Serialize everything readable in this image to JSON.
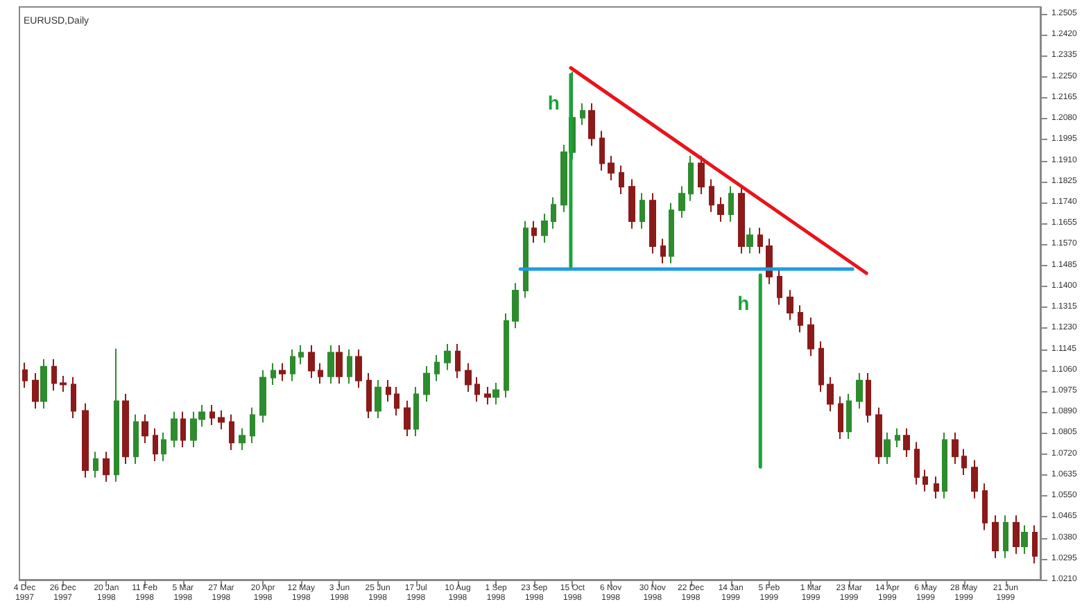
{
  "chart_data": {
    "type": "candlestick",
    "title": "EURUSD,Daily",
    "xlim": [
      "1997-12-01",
      "1999-07-11"
    ],
    "xticks": [
      {
        "value": "1997-12-04",
        "label": "4 Dec 1997"
      },
      {
        "value": "1997-12-26",
        "label": "26 Dec 1997"
      },
      {
        "value": "1998-01-20",
        "label": "20 Jan 1998"
      },
      {
        "value": "1998-02-11",
        "label": "11 Feb 1998"
      },
      {
        "value": "1998-03-05",
        "label": "5 Mar 1998"
      },
      {
        "value": "1998-03-27",
        "label": "27 Mar 1998"
      },
      {
        "value": "1998-04-20",
        "label": "20 Apr 1998"
      },
      {
        "value": "1998-05-12",
        "label": "12 May 1998"
      },
      {
        "value": "1998-06-03",
        "label": "3 Jun 1998"
      },
      {
        "value": "1998-06-25",
        "label": "25 Jun 1998"
      },
      {
        "value": "1998-07-17",
        "label": "17 Jul 1998"
      },
      {
        "value": "1998-08-10",
        "label": "10 Aug 1998"
      },
      {
        "value": "1998-09-01",
        "label": "1 Sep 1998"
      },
      {
        "value": "1998-09-23",
        "label": "23 Sep 1998"
      },
      {
        "value": "1998-10-15",
        "label": "15 Oct 1998"
      },
      {
        "value": "1998-11-06",
        "label": "6 Nov 1998"
      },
      {
        "value": "1998-11-30",
        "label": "30 Nov 1998"
      },
      {
        "value": "1998-12-22",
        "label": "22 Dec 1998"
      },
      {
        "value": "1999-01-14",
        "label": "14 Jan 1999"
      },
      {
        "value": "1999-02-05",
        "label": "5 Feb 1999"
      },
      {
        "value": "1999-03-01",
        "label": "1 Mar 1999"
      },
      {
        "value": "1999-03-23",
        "label": "23 Mar 1999"
      },
      {
        "value": "1999-04-14",
        "label": "14 Apr 1999"
      },
      {
        "value": "1999-05-06",
        "label": "6 May 1999"
      },
      {
        "value": "1999-05-28",
        "label": "28 May 1999"
      },
      {
        "value": "1999-06-21",
        "label": "21 Jun 1999"
      }
    ],
    "ylim": [
      1.021,
      1.2533
    ],
    "yticks": [
      {
        "value": 1.021,
        "label": "1.0210"
      },
      {
        "value": 1.0295,
        "label": "1.0295"
      },
      {
        "value": 1.038,
        "label": "1.0380"
      },
      {
        "value": 1.0465,
        "label": "1.0465"
      },
      {
        "value": 1.055,
        "label": "1.0550"
      },
      {
        "value": 1.0635,
        "label": "1.0635"
      },
      {
        "value": 1.072,
        "label": "1.0720"
      },
      {
        "value": 1.0805,
        "label": "1.0805"
      },
      {
        "value": 1.089,
        "label": "1.0890"
      },
      {
        "value": 1.0975,
        "label": "1.0975"
      },
      {
        "value": 1.106,
        "label": "1.1060"
      },
      {
        "value": 1.1145,
        "label": "1.1145"
      },
      {
        "value": 1.123,
        "label": "1.1230"
      },
      {
        "value": 1.1315,
        "label": "1.1315"
      },
      {
        "value": 1.14,
        "label": "1.1400"
      },
      {
        "value": 1.1485,
        "label": "1.1485"
      },
      {
        "value": 1.157,
        "label": "1.1570"
      },
      {
        "value": 1.1655,
        "label": "1.1655"
      },
      {
        "value": 1.174,
        "label": "1.1740"
      },
      {
        "value": 1.1825,
        "label": "1.1825"
      },
      {
        "value": 1.191,
        "label": "1.1910"
      },
      {
        "value": 1.1995,
        "label": "1.1995"
      },
      {
        "value": 1.208,
        "label": "1.2080"
      },
      {
        "value": 1.2165,
        "label": "1.2165"
      },
      {
        "value": 1.225,
        "label": "1.2250"
      },
      {
        "value": 1.2335,
        "label": "1.2335"
      },
      {
        "value": 1.242,
        "label": "1.2420"
      },
      {
        "value": 1.2505,
        "label": "1.2505"
      }
    ],
    "series": [
      {
        "x": [
          "1997-12-04",
          "1997-12-10",
          "1997-12-15",
          "1997-12-21",
          "1997-12-26",
          "1998-01-01",
          "1998-01-08",
          "1998-01-14",
          "1998-01-20",
          "1998-01-26",
          "1998-01-31",
          "1998-02-06",
          "1998-02-11",
          "1998-02-17",
          "1998-02-22",
          "1998-02-28",
          "1998-03-05",
          "1998-03-11",
          "1998-03-16",
          "1998-03-22",
          "1998-03-27",
          "1998-04-02",
          "1998-04-08",
          "1998-04-14",
          "1998-04-20",
          "1998-04-26",
          "1998-05-01",
          "1998-05-07",
          "1998-05-12",
          "1998-05-18",
          "1998-05-23",
          "1998-05-29",
          "1998-06-03",
          "1998-06-09",
          "1998-06-14",
          "1998-06-20",
          "1998-06-25",
          "1998-07-01",
          "1998-07-06",
          "1998-07-12",
          "1998-07-17",
          "1998-07-23",
          "1998-07-29",
          "1998-08-04",
          "1998-08-10",
          "1998-08-16",
          "1998-08-21",
          "1998-08-27",
          "1998-09-01",
          "1998-09-07",
          "1998-09-12",
          "1998-09-18",
          "1998-09-23",
          "1998-09-29",
          "1998-10-04",
          "1998-10-10",
          "1998-10-15",
          "1998-10-21",
          "1998-10-26",
          "1998-11-01",
          "1998-11-06",
          "1998-11-12",
          "1998-11-18",
          "1998-11-24",
          "1998-11-30",
          "1998-12-06",
          "1998-12-11",
          "1998-12-17",
          "1998-12-22",
          "1998-12-28",
          "1999-01-03",
          "1999-01-08",
          "1999-01-14",
          "1999-01-20",
          "1999-01-25",
          "1999-01-31",
          "1999-02-05",
          "1999-02-11",
          "1999-02-17",
          "1999-02-23",
          "1999-03-01",
          "1999-03-07",
          "1999-03-12",
          "1999-03-18",
          "1999-03-23",
          "1999-03-29",
          "1999-04-03",
          "1999-04-09",
          "1999-04-14",
          "1999-04-20",
          "1999-04-25",
          "1999-05-01",
          "1999-05-06",
          "1999-05-12",
          "1999-05-17",
          "1999-05-23",
          "1999-05-28",
          "1999-06-03",
          "1999-06-09",
          "1999-06-15",
          "1999-06-21",
          "1999-06-27",
          "1999-07-02",
          "1999-07-08"
        ],
        "colors": [
          "#8b1a1a",
          "#8b1a1a",
          "#2e8b2e",
          "#8b1a1a",
          "#8b1a1a",
          "#8b1a1a",
          "#8b1a1a",
          "#2e8b2e",
          "#8b1a1a",
          "#2e8b2e",
          "#8b1a1a",
          "#2e8b2e",
          "#8b1a1a",
          "#8b1a1a",
          "#2e8b2e",
          "#2e8b2e",
          "#8b1a1a",
          "#2e8b2e",
          "#2e8b2e",
          "#8b1a1a",
          "#8b1a1a",
          "#8b1a1a",
          "#2e8b2e",
          "#2e8b2e",
          "#2e8b2e",
          "#2e8b2e",
          "#8b1a1a",
          "#2e8b2e",
          "#2e8b2e",
          "#8b1a1a",
          "#8b1a1a",
          "#2e8b2e",
          "#8b1a1a",
          "#2e8b2e",
          "#8b1a1a",
          "#8b1a1a",
          "#2e8b2e",
          "#8b1a1a",
          "#8b1a1a",
          "#8b1a1a",
          "#2e8b2e",
          "#2e8b2e",
          "#2e8b2e",
          "#2e8b2e",
          "#8b1a1a",
          "#8b1a1a",
          "#8b1a1a",
          "#8b1a1a",
          "#2e8b2e",
          "#2e8b2e",
          "#2e8b2e",
          "#2e8b2e",
          "#8b1a1a",
          "#2e8b2e",
          "#2e8b2e",
          "#2e8b2e",
          "#2e8b2e",
          "#2e8b2e",
          "#8b1a1a",
          "#8b1a1a",
          "#8b1a1a",
          "#8b1a1a",
          "#8b1a1a",
          "#2e8b2e",
          "#8b1a1a",
          "#8b1a1a",
          "#2e8b2e",
          "#2e8b2e",
          "#2e8b2e",
          "#8b1a1a",
          "#8b1a1a",
          "#8b1a1a",
          "#2e8b2e",
          "#8b1a1a",
          "#2e8b2e",
          "#8b1a1a",
          "#8b1a1a",
          "#8b1a1a",
          "#8b1a1a",
          "#8b1a1a",
          "#8b1a1a",
          "#8b1a1a",
          "#8b1a1a",
          "#8b1a1a",
          "#2e8b2e",
          "#2e8b2e",
          "#8b1a1a",
          "#8b1a1a",
          "#2e8b2e",
          "#2e8b2e",
          "#8b1a1a",
          "#8b1a1a",
          "#8b1a1a",
          "#8b1a1a",
          "#2e8b2e",
          "#8b1a1a",
          "#8b1a1a",
          "#8b1a1a",
          "#8b1a1a",
          "#8b1a1a",
          "#2e8b2e",
          "#8b1a1a",
          "#2e8b2e",
          "#8b1a1a"
        ],
        "ohlc": [
          [
            1.106,
            1.109,
            1.0988,
            1.1018
          ],
          [
            1.1018,
            1.1048,
            1.0904,
            1.0934
          ],
          [
            1.0934,
            1.1104,
            1.0904,
            1.1074
          ],
          [
            1.1074,
            1.1104,
            1.0977,
            1.1007
          ],
          [
            1.1007,
            1.1037,
            1.0972,
            1.1002
          ],
          [
            1.1002,
            1.1032,
            1.0865,
            1.0895
          ],
          [
            1.0895,
            1.0925,
            1.0624,
            1.0654
          ],
          [
            1.0654,
            1.0729,
            1.0624,
            1.0699
          ],
          [
            1.0699,
            1.0729,
            1.0607,
            1.0637
          ],
          [
            1.0637,
            1.1147,
            1.0607,
            1.0934
          ],
          [
            1.0934,
            1.0964,
            1.068,
            1.071
          ],
          [
            1.071,
            1.088,
            1.068,
            1.085
          ],
          [
            1.085,
            1.088,
            1.0764,
            1.0794
          ],
          [
            1.0794,
            1.0824,
            1.0691,
            1.0721
          ],
          [
            1.0721,
            1.0807,
            1.0691,
            1.0777
          ],
          [
            1.0777,
            1.0891,
            1.0747,
            1.0861
          ],
          [
            1.0861,
            1.0891,
            1.0747,
            1.0777
          ],
          [
            1.0777,
            1.0891,
            1.0747,
            1.0861
          ],
          [
            1.0861,
            1.0919,
            1.0831,
            1.0889
          ],
          [
            1.0889,
            1.0919,
            1.0837,
            1.0867
          ],
          [
            1.0867,
            1.0897,
            1.082,
            1.085
          ],
          [
            1.085,
            1.088,
            1.0736,
            1.0766
          ],
          [
            1.0766,
            1.0824,
            1.0736,
            1.0794
          ],
          [
            1.0794,
            1.0908,
            1.0764,
            1.0878
          ],
          [
            1.0878,
            1.106,
            1.0848,
            1.103
          ],
          [
            1.103,
            1.1088,
            1.1,
            1.1058
          ],
          [
            1.1058,
            1.1088,
            1.1016,
            1.1046
          ],
          [
            1.1046,
            1.1144,
            1.1016,
            1.1114
          ],
          [
            1.1114,
            1.1161,
            1.1084,
            1.1131
          ],
          [
            1.1131,
            1.1161,
            1.1028,
            1.1058
          ],
          [
            1.1058,
            1.1088,
            1.1005,
            1.1035
          ],
          [
            1.1035,
            1.1161,
            1.1005,
            1.1131
          ],
          [
            1.1131,
            1.1161,
            1.1005,
            1.1035
          ],
          [
            1.1035,
            1.1144,
            1.1005,
            1.1114
          ],
          [
            1.1114,
            1.1144,
            1.0988,
            1.1018
          ],
          [
            1.1018,
            1.1048,
            1.0865,
            1.0895
          ],
          [
            1.0895,
            1.102,
            1.0865,
            1.099
          ],
          [
            1.099,
            1.102,
            1.0932,
            1.0962
          ],
          [
            1.0962,
            1.0992,
            1.0876,
            1.0906
          ],
          [
            1.0906,
            1.0936,
            1.0792,
            1.0822
          ],
          [
            1.0822,
            1.0992,
            1.0792,
            1.0962
          ],
          [
            1.0962,
            1.1076,
            1.0932,
            1.1046
          ],
          [
            1.1046,
            1.1121,
            1.1016,
            1.1091
          ],
          [
            1.1091,
            1.1166,
            1.1061,
            1.1136
          ],
          [
            1.1136,
            1.1166,
            1.1028,
            1.1058
          ],
          [
            1.1058,
            1.1088,
            1.0972,
            1.1002
          ],
          [
            1.1002,
            1.1032,
            1.0932,
            1.0962
          ],
          [
            1.0962,
            1.0992,
            1.0921,
            1.0951
          ],
          [
            1.0951,
            1.1009,
            1.0921,
            1.0979
          ],
          [
            1.0979,
            1.129,
            1.0949,
            1.126
          ],
          [
            1.126,
            1.1413,
            1.123,
            1.1383
          ],
          [
            1.1383,
            1.1665,
            1.1353,
            1.1635
          ],
          [
            1.1635,
            1.1665,
            1.1577,
            1.1607
          ],
          [
            1.1607,
            1.1694,
            1.1577,
            1.1664
          ],
          [
            1.1664,
            1.1761,
            1.1634,
            1.1731
          ],
          [
            1.1731,
            1.1974,
            1.1701,
            1.1944
          ],
          [
            1.1944,
            1.227,
            1.1914,
            1.2084
          ],
          [
            1.2084,
            1.2142,
            1.2054,
            1.2112
          ],
          [
            1.2112,
            1.2142,
            1.197,
            1.2
          ],
          [
            1.2,
            1.203,
            1.1869,
            1.1899
          ],
          [
            1.1899,
            1.1929,
            1.183,
            1.186
          ],
          [
            1.186,
            1.189,
            1.1774,
            1.1804
          ],
          [
            1.1804,
            1.1834,
            1.1634,
            1.1664
          ],
          [
            1.1664,
            1.1778,
            1.1634,
            1.1748
          ],
          [
            1.1748,
            1.1778,
            1.1533,
            1.1563
          ],
          [
            1.1563,
            1.1593,
            1.1493,
            1.1523
          ],
          [
            1.1523,
            1.1738,
            1.1493,
            1.1708
          ],
          [
            1.1708,
            1.1806,
            1.1678,
            1.1776
          ],
          [
            1.1776,
            1.1929,
            1.1746,
            1.1899
          ],
          [
            1.1899,
            1.1929,
            1.1774,
            1.1804
          ],
          [
            1.1804,
            1.1834,
            1.1701,
            1.1731
          ],
          [
            1.1731,
            1.1761,
            1.1662,
            1.1692
          ],
          [
            1.1692,
            1.1806,
            1.1662,
            1.1776
          ],
          [
            1.1776,
            1.1806,
            1.1533,
            1.1563
          ],
          [
            1.1563,
            1.1637,
            1.1533,
            1.1607
          ],
          [
            1.1607,
            1.1637,
            1.1533,
            1.1563
          ],
          [
            1.1563,
            1.1593,
            1.1409,
            1.1439
          ],
          [
            1.1439,
            1.1469,
            1.1325,
            1.1355
          ],
          [
            1.1355,
            1.1385,
            1.1263,
            1.1293
          ],
          [
            1.1293,
            1.1323,
            1.1213,
            1.1243
          ],
          [
            1.1243,
            1.1273,
            1.1117,
            1.1147
          ],
          [
            1.1147,
            1.1177,
            1.0972,
            1.1002
          ],
          [
            1.1002,
            1.1032,
            1.0893,
            1.0923
          ],
          [
            1.0923,
            1.0953,
            1.0781,
            1.0811
          ],
          [
            1.0811,
            1.0964,
            1.0781,
            1.0934
          ],
          [
            1.0934,
            1.1048,
            1.0904,
            1.1018
          ],
          [
            1.1018,
            1.1048,
            1.0848,
            1.0878
          ],
          [
            1.0878,
            1.0908,
            1.068,
            1.071
          ],
          [
            1.071,
            1.0807,
            1.068,
            1.0777
          ],
          [
            1.0777,
            1.0824,
            1.0747,
            1.0794
          ],
          [
            1.0794,
            1.0824,
            1.0708,
            1.0738
          ],
          [
            1.0738,
            1.0768,
            1.0596,
            1.0626
          ],
          [
            1.0626,
            1.0656,
            1.0568,
            1.0598
          ],
          [
            1.0598,
            1.0628,
            1.054,
            1.057
          ],
          [
            1.057,
            1.0807,
            1.054,
            1.0777
          ],
          [
            1.0777,
            1.0807,
            1.068,
            1.071
          ],
          [
            1.071,
            1.074,
            1.0635,
            1.0665
          ],
          [
            1.0665,
            1.0695,
            1.054,
            1.057
          ],
          [
            1.057,
            1.06,
            1.0411,
            1.0441
          ],
          [
            1.0441,
            1.0471,
            1.0298,
            1.0328
          ],
          [
            1.0328,
            1.0471,
            1.0298,
            1.0441
          ],
          [
            1.0441,
            1.0471,
            1.0315,
            1.0345
          ],
          [
            1.0345,
            1.0431,
            1.0315,
            1.0401
          ],
          [
            1.0401,
            1.0431,
            1.0276,
            1.0306
          ]
        ]
      },
      {
        "type": "line",
        "color": "#e8141b",
        "x": [
          "1998-10-14",
          "1999-04-02"
        ],
        "values": [
          1.2286,
          1.1453
        ]
      },
      {
        "type": "line",
        "color": "#1e9be8",
        "x": [
          "1998-09-15",
          "1999-03-25"
        ],
        "values": [
          1.147,
          1.147
        ]
      },
      {
        "type": "line",
        "name": "h",
        "color": "#1aa33a",
        "x": [
          "1998-10-14",
          "1998-10-14"
        ],
        "values": [
          1.1481,
          1.2258
        ]
      },
      {
        "type": "line",
        "name": "h",
        "color": "#1aa33a",
        "x": [
          "1999-01-31",
          "1999-01-31"
        ],
        "values": [
          1.0668,
          1.1445
        ]
      }
    ]
  }
}
